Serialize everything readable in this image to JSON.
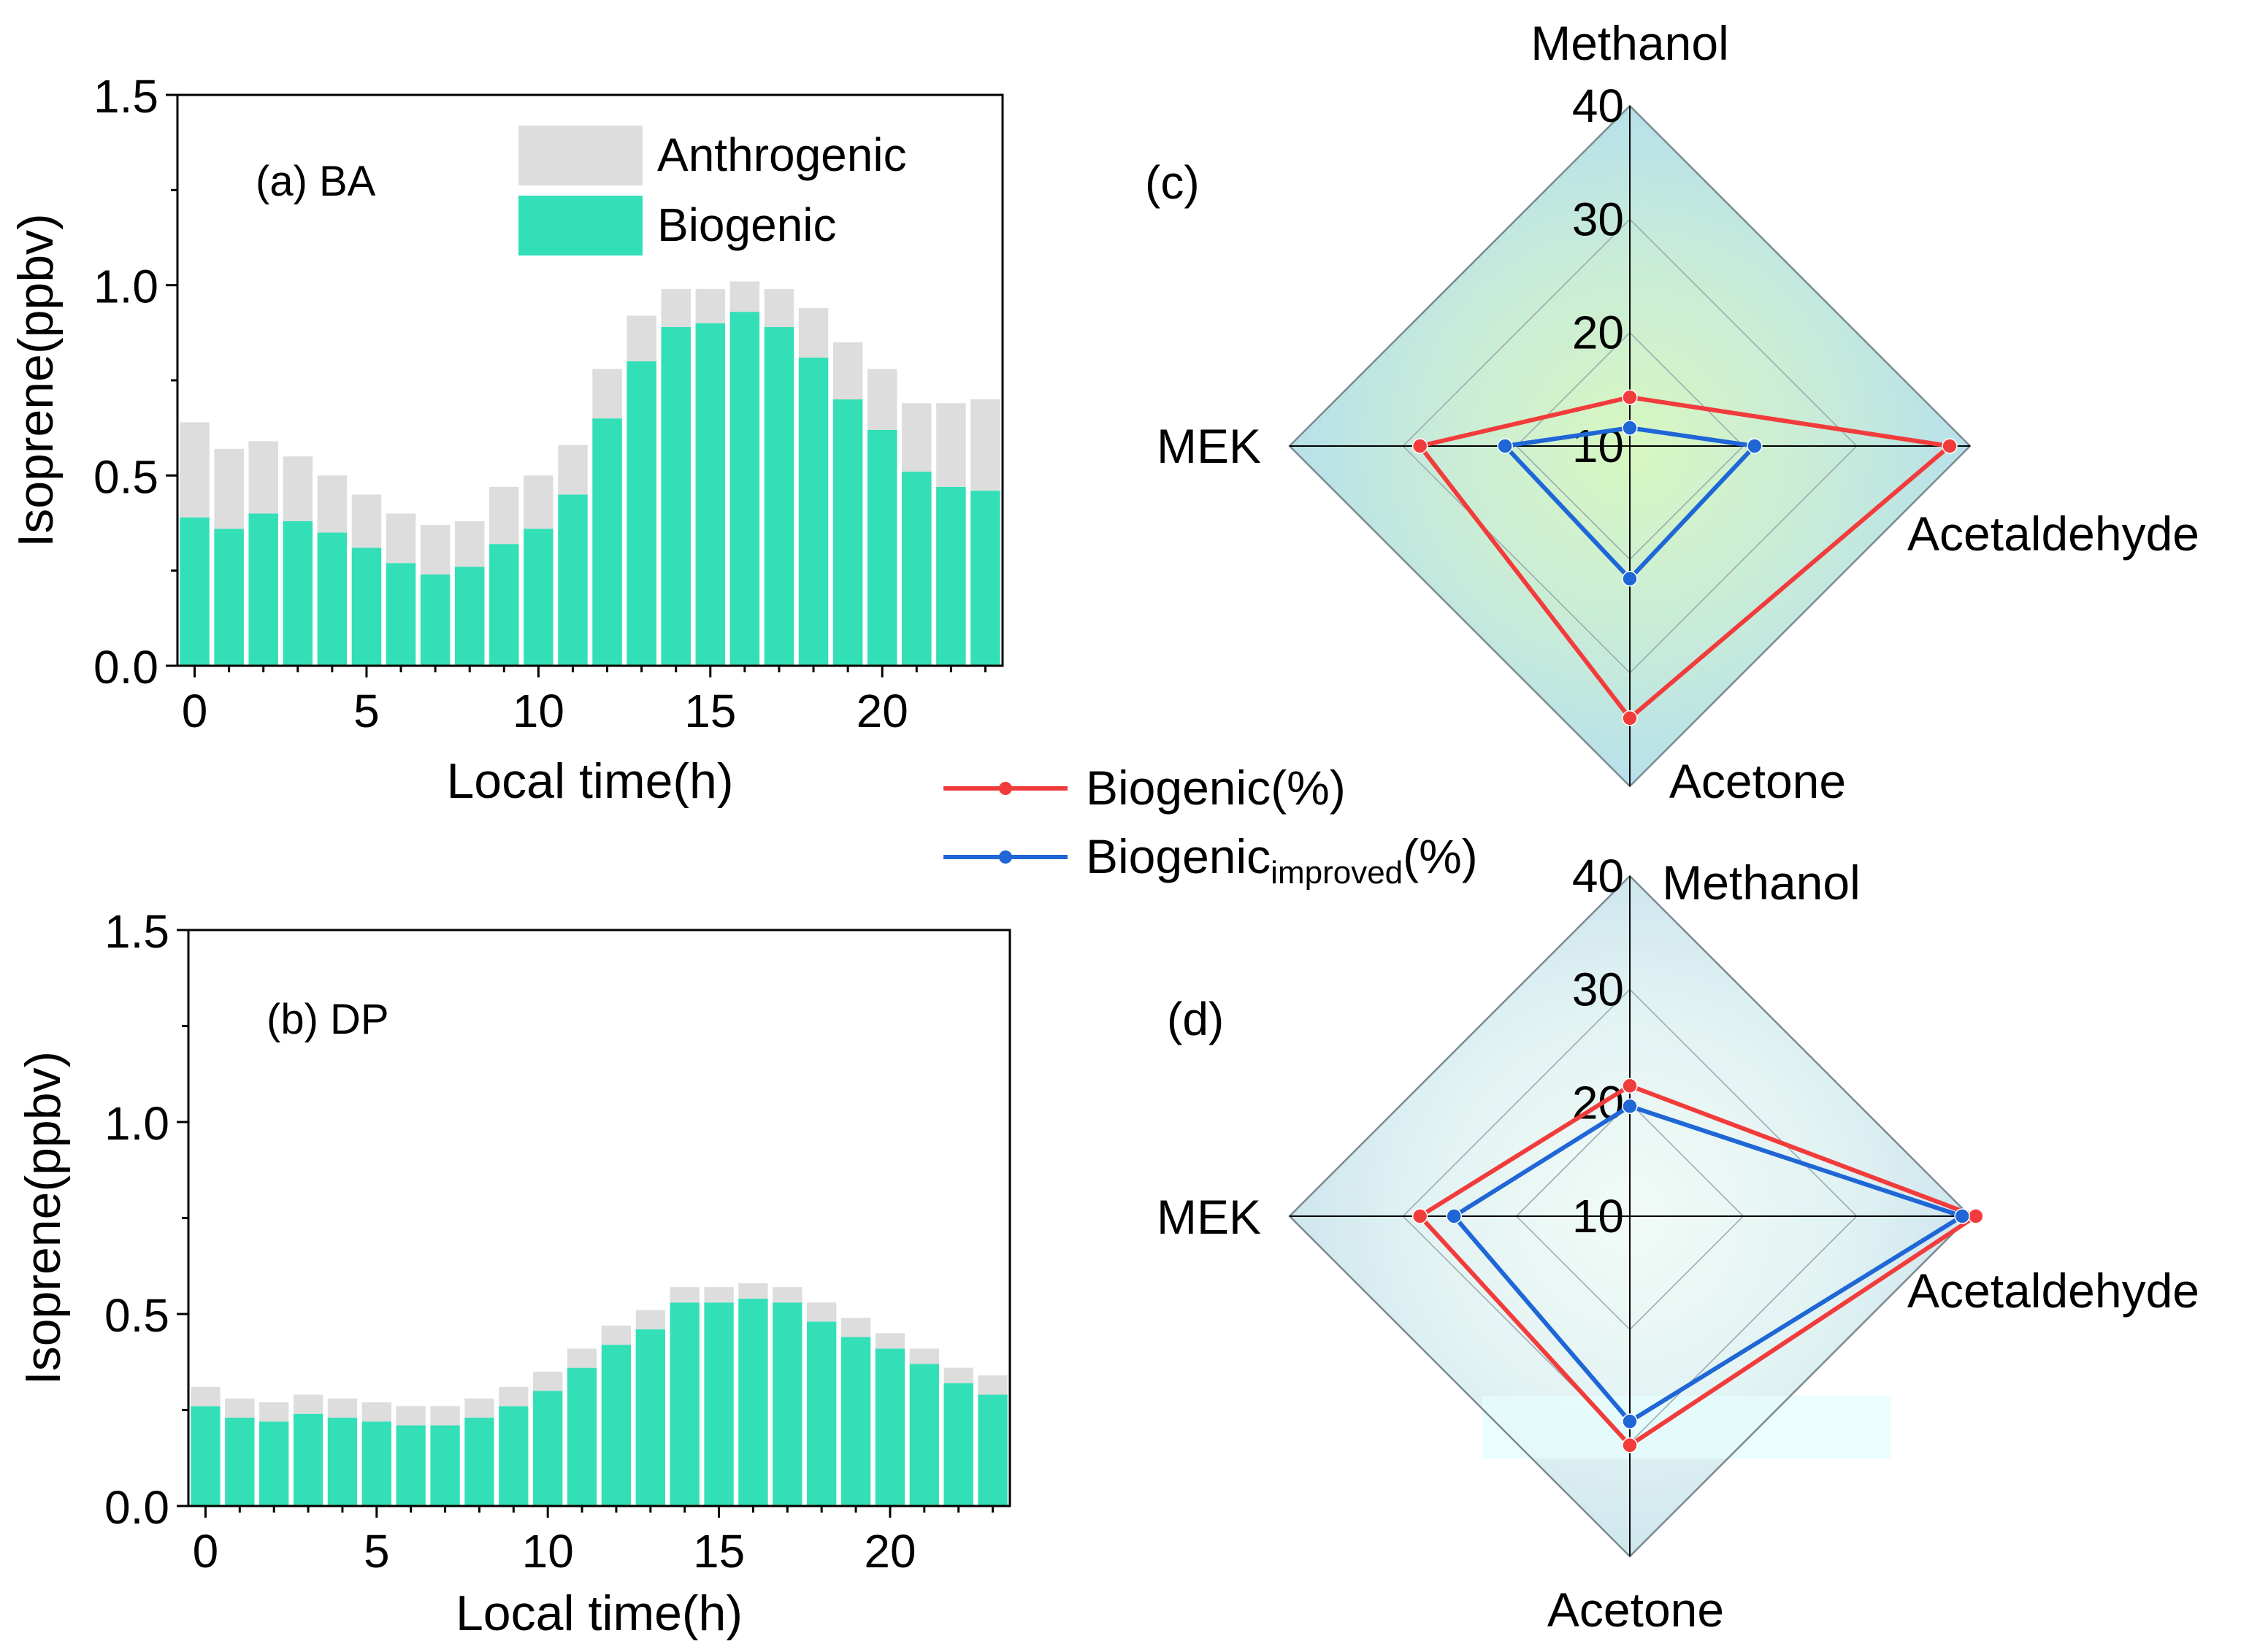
{
  "chart_data": [
    {
      "id": "a",
      "type": "bar",
      "stacked": true,
      "panel_label": "(a) BA",
      "xlabel": "Local time(h)",
      "ylabel": "Isoprene(ppbv)",
      "xlim": [
        -0.5,
        23.5
      ],
      "ylim": [
        0,
        1.5
      ],
      "xticks": [
        0,
        5,
        10,
        15,
        20
      ],
      "yticks": [
        0.0,
        0.5,
        1.0,
        1.5
      ],
      "ytick_labels": [
        "0.0",
        "0.5",
        "1.0",
        "1.5"
      ],
      "legend": {
        "placement": "top-right",
        "entries": [
          "Anthrogenic",
          "Biogenic"
        ]
      },
      "categories": [
        0,
        1,
        2,
        3,
        4,
        5,
        6,
        7,
        8,
        9,
        10,
        11,
        12,
        13,
        14,
        15,
        16,
        17,
        18,
        19,
        20,
        21,
        22,
        23
      ],
      "series": [
        {
          "name": "Biogenic",
          "color": "#33dfb7",
          "values": [
            0.39,
            0.36,
            0.4,
            0.38,
            0.35,
            0.31,
            0.27,
            0.24,
            0.26,
            0.32,
            0.36,
            0.45,
            0.65,
            0.8,
            0.89,
            0.9,
            0.93,
            0.89,
            0.81,
            0.7,
            0.62,
            0.51,
            0.47,
            0.46
          ]
        },
        {
          "name": "Anthrogenic",
          "color": "#dddddd",
          "values": [
            0.25,
            0.21,
            0.19,
            0.17,
            0.15,
            0.14,
            0.13,
            0.13,
            0.12,
            0.15,
            0.14,
            0.13,
            0.13,
            0.12,
            0.1,
            0.09,
            0.08,
            0.1,
            0.13,
            0.15,
            0.16,
            0.18,
            0.22,
            0.24
          ]
        }
      ]
    },
    {
      "id": "b",
      "type": "bar",
      "stacked": true,
      "panel_label": "(b) DP",
      "xlabel": "Local time(h)",
      "ylabel": "Isoprene(ppbv)",
      "xlim": [
        -0.5,
        23.5
      ],
      "ylim": [
        0,
        1.5
      ],
      "xticks": [
        0,
        5,
        10,
        15,
        20
      ],
      "yticks": [
        0.0,
        0.5,
        1.0,
        1.5
      ],
      "ytick_labels": [
        "0.0",
        "0.5",
        "1.0",
        "1.5"
      ],
      "categories": [
        0,
        1,
        2,
        3,
        4,
        5,
        6,
        7,
        8,
        9,
        10,
        11,
        12,
        13,
        14,
        15,
        16,
        17,
        18,
        19,
        20,
        21,
        22,
        23
      ],
      "series": [
        {
          "name": "Biogenic",
          "color": "#33dfb7",
          "values": [
            0.26,
            0.23,
            0.22,
            0.24,
            0.23,
            0.22,
            0.21,
            0.21,
            0.23,
            0.26,
            0.3,
            0.36,
            0.42,
            0.46,
            0.53,
            0.53,
            0.54,
            0.53,
            0.48,
            0.44,
            0.41,
            0.37,
            0.32,
            0.29
          ]
        },
        {
          "name": "Anthrogenic",
          "color": "#dddddd",
          "values": [
            0.05,
            0.05,
            0.05,
            0.05,
            0.05,
            0.05,
            0.05,
            0.05,
            0.05,
            0.05,
            0.05,
            0.05,
            0.05,
            0.05,
            0.04,
            0.04,
            0.04,
            0.04,
            0.05,
            0.05,
            0.04,
            0.04,
            0.04,
            0.05
          ]
        }
      ]
    },
    {
      "id": "c",
      "type": "radar",
      "panel_label": "(c)",
      "axes": [
        "Methanol",
        "Acetaldehyde",
        "Acetone",
        "MEK"
      ],
      "rmin": 10,
      "rmax": 40,
      "rticks": [
        10,
        20,
        30,
        40
      ],
      "series": [
        {
          "name": "Biogenic(%)",
          "color": "#f23c3c",
          "values": [
            14.3,
            38.2,
            34.0,
            28.5
          ]
        },
        {
          "name": "Biogenic_improved(%)",
          "color": "#1f66d6",
          "values": [
            11.6,
            21.0,
            21.7,
            21.0
          ]
        }
      ]
    },
    {
      "id": "d",
      "type": "radar",
      "panel_label": "(d)",
      "axes": [
        "Methanol",
        "Acetaldehyde",
        "Acetone",
        "MEK"
      ],
      "rmin": 10,
      "rmax": 40,
      "rticks": [
        10,
        20,
        30,
        40
      ],
      "series": [
        {
          "name": "Biogenic(%)",
          "color": "#f23c3c",
          "values": [
            21.5,
            40.5,
            30.2,
            28.5
          ]
        },
        {
          "name": "Biogenic_improved(%)",
          "color": "#1f66d6",
          "values": [
            19.7,
            39.3,
            28.1,
            25.5
          ]
        }
      ]
    }
  ],
  "radar_legend": {
    "entries": [
      {
        "main": "Biogenic(%)",
        "sub": "",
        "tail": ""
      },
      {
        "main": "Biogenic",
        "sub": "improved",
        "tail": "(%)"
      }
    ]
  }
}
